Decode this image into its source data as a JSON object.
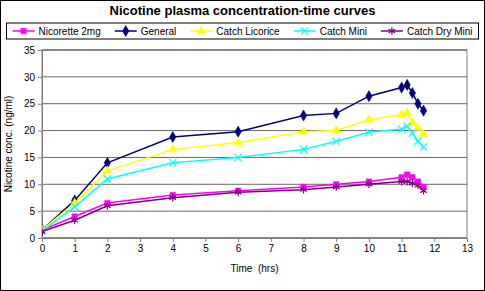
{
  "chart_data": {
    "type": "line",
    "title": "Nicotine plasma concentration-time curves",
    "x_label": "Time  (hrs)",
    "y_label": "Nicotine conc. (ng/ml)",
    "x": [
      0,
      1,
      2,
      4,
      6,
      8,
      9,
      10,
      11,
      11.17,
      11.33,
      11.5,
      11.67
    ],
    "series": [
      {
        "name": "Nicorette 2mg",
        "color": "#ff00ff",
        "marker": "square",
        "line_style": "solid",
        "values": [
          1.5,
          4,
          6.5,
          8,
          8.8,
          9.5,
          10,
          10.5,
          11.3,
          11.8,
          11.3,
          10.5,
          9.5
        ]
      },
      {
        "name": "General",
        "color": "#000080",
        "marker": "diamond",
        "line_style": "solid",
        "values": [
          1.5,
          7,
          14,
          18.8,
          19.8,
          22.8,
          23.2,
          26.4,
          28,
          28.5,
          27,
          25,
          23.7
        ]
      },
      {
        "name": "Catch Licorice",
        "color": "#ffff00",
        "marker": "triangle",
        "line_style": "solid",
        "values": [
          1.5,
          6.5,
          12.5,
          16.5,
          17.8,
          19.8,
          20,
          22,
          23,
          23.3,
          21.5,
          20.5,
          19.3
        ]
      },
      {
        "name": "Catch Mini",
        "color": "#00ffff",
        "marker": "x",
        "line_style": "solid",
        "values": [
          1.3,
          5.8,
          11,
          14,
          15,
          16.5,
          18,
          19.7,
          20.3,
          20.8,
          19.5,
          18,
          17
        ]
      },
      {
        "name": "Catch Dry Mini",
        "color": "#800080",
        "marker": "star",
        "line_style": "solid",
        "values": [
          1.2,
          3.3,
          6,
          7.5,
          8.5,
          9,
          9.5,
          10,
          10.5,
          10.5,
          10.2,
          9.8,
          8.8
        ]
      }
    ],
    "xlim": [
      0,
      13
    ],
    "xticks": [
      0,
      1,
      2,
      3,
      4,
      5,
      6,
      7,
      8,
      9,
      10,
      11,
      12,
      13
    ],
    "ylim": [
      0,
      35
    ],
    "yticks": [
      0,
      5,
      10,
      15,
      20,
      25,
      30,
      35
    ],
    "grid": true,
    "legend": "top"
  }
}
